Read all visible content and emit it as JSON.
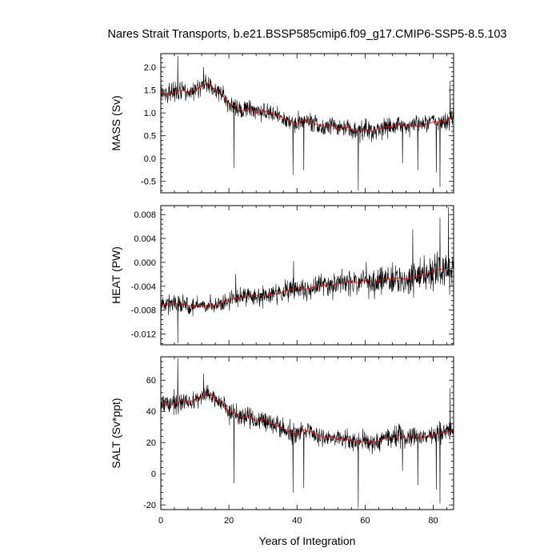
{
  "figure": {
    "title": "Nares Strait Transports, b.e21.BSSP585cmip6.f09_g17.CMIP6-SSP5-8.5.103",
    "xlabel": "Years of Integration"
  },
  "chart_data": [
    {
      "type": "line",
      "ylabel": "MASS (Sv)",
      "xlim": [
        0,
        86
      ],
      "ylim": [
        -0.75,
        2.3
      ],
      "x_ticks": [
        0,
        20,
        40,
        60,
        80
      ],
      "y_ticks": [
        -0.5,
        0.0,
        0.5,
        1.0,
        1.5,
        2.0
      ],
      "y_tick_labels": [
        "-0.5",
        "0.0",
        "0.5",
        "1.0",
        "1.5",
        "2.0"
      ],
      "x_years": [
        0,
        2,
        4,
        6,
        8,
        10,
        12,
        14,
        16,
        18,
        20,
        22,
        24,
        26,
        28,
        30,
        32,
        34,
        36,
        38,
        40,
        42,
        44,
        46,
        48,
        50,
        52,
        54,
        56,
        58,
        60,
        62,
        64,
        66,
        68,
        70,
        72,
        74,
        76,
        78,
        80,
        82,
        84,
        86
      ],
      "series": [
        {
          "color": "#000000",
          "line_width": 0.6,
          "step_years": 0.083333,
          "values": [
            1.45,
            1.4,
            1.45,
            1.5,
            1.45,
            1.5,
            1.6,
            1.65,
            1.5,
            1.4,
            1.2,
            1.15,
            1.05,
            1.1,
            1.0,
            1.05,
            1.0,
            0.95,
            0.9,
            0.8,
            0.75,
            0.85,
            0.8,
            0.75,
            0.7,
            0.75,
            0.65,
            0.7,
            0.65,
            0.6,
            0.65,
            0.6,
            0.65,
            0.7,
            0.7,
            0.75,
            0.7,
            0.75,
            0.7,
            0.75,
            0.8,
            0.8,
            0.85,
            0.9
          ],
          "noise": 0.25,
          "spikes": [
            [
              5.0,
              2.25
            ],
            [
              12.6,
              2.0
            ],
            [
              21.5,
              -0.2
            ],
            [
              38.8,
              -0.35
            ],
            [
              42.0,
              -0.25
            ],
            [
              58.0,
              -0.7
            ],
            [
              71.0,
              -0.1
            ],
            [
              75.5,
              -0.25
            ],
            [
              80.9,
              -0.3
            ],
            [
              82.0,
              -0.62
            ],
            [
              85.0,
              1.7
            ]
          ]
        },
        {
          "color": "#ff0000",
          "line_width": 0.9,
          "step_years": 1,
          "values": [
            1.45,
            1.4,
            1.45,
            1.5,
            1.45,
            1.5,
            1.6,
            1.65,
            1.5,
            1.4,
            1.2,
            1.15,
            1.05,
            1.1,
            1.0,
            1.05,
            1.0,
            0.95,
            0.9,
            0.8,
            0.75,
            0.85,
            0.8,
            0.75,
            0.7,
            0.75,
            0.65,
            0.7,
            0.65,
            0.6,
            0.65,
            0.6,
            0.65,
            0.7,
            0.7,
            0.75,
            0.7,
            0.75,
            0.7,
            0.75,
            0.8,
            0.8,
            0.85,
            0.9
          ]
        }
      ]
    },
    {
      "type": "line",
      "ylabel": "HEAT (PW)",
      "xlim": [
        0,
        86
      ],
      "ylim": [
        -0.0138,
        0.0095
      ],
      "x_ticks": [
        0,
        20,
        40,
        60,
        80
      ],
      "y_ticks": [
        -0.012,
        -0.008,
        -0.004,
        0.0,
        0.004,
        0.008
      ],
      "y_tick_labels": [
        "-0.012",
        "-0.008",
        "-0.004",
        "0.000",
        "0.004",
        "0.008"
      ],
      "x_years": [
        0,
        2,
        4,
        6,
        8,
        10,
        12,
        14,
        16,
        18,
        20,
        22,
        24,
        26,
        28,
        30,
        32,
        34,
        36,
        38,
        40,
        42,
        44,
        46,
        48,
        50,
        52,
        54,
        56,
        58,
        60,
        62,
        64,
        66,
        68,
        70,
        72,
        74,
        76,
        78,
        80,
        82,
        84,
        86
      ],
      "series": [
        {
          "color": "#000000",
          "line_width": 0.6,
          "step_years": 0.083333,
          "values": [
            -0.007,
            -0.007,
            -0.0068,
            -0.007,
            -0.0072,
            -0.0073,
            -0.0072,
            -0.0074,
            -0.0072,
            -0.0068,
            -0.0062,
            -0.006,
            -0.0058,
            -0.0055,
            -0.0055,
            -0.0056,
            -0.0054,
            -0.0053,
            -0.005,
            -0.0045,
            -0.0042,
            -0.0045,
            -0.0043,
            -0.004,
            -0.0038,
            -0.004,
            -0.0035,
            -0.0034,
            -0.0032,
            -0.0034,
            -0.003,
            -0.0032,
            -0.003,
            -0.0028,
            -0.0028,
            -0.0026,
            -0.0028,
            -0.0024,
            -0.0022,
            -0.002,
            -0.0014,
            -0.0012,
            -0.001,
            -0.001
          ],
          "noise": 0.0018,
          "noise_growth": 2.2,
          "spikes": [
            [
              5.0,
              -0.0135
            ],
            [
              22.0,
              -0.002
            ],
            [
              39.0,
              0.0002
            ],
            [
              74.0,
              0.0055
            ],
            [
              82.0,
              0.0074
            ],
            [
              84.5,
              0.0092
            ]
          ]
        },
        {
          "color": "#ff0000",
          "line_width": 0.9,
          "step_years": 1,
          "values": [
            -0.007,
            -0.007,
            -0.0068,
            -0.007,
            -0.0072,
            -0.0073,
            -0.0072,
            -0.0074,
            -0.0072,
            -0.0068,
            -0.0062,
            -0.006,
            -0.0058,
            -0.0055,
            -0.0055,
            -0.0056,
            -0.0054,
            -0.0053,
            -0.005,
            -0.0045,
            -0.0042,
            -0.0045,
            -0.0043,
            -0.004,
            -0.0038,
            -0.004,
            -0.0035,
            -0.0034,
            -0.0032,
            -0.0034,
            -0.003,
            -0.0032,
            -0.003,
            -0.0028,
            -0.0028,
            -0.0026,
            -0.0028,
            -0.0024,
            -0.0022,
            -0.002,
            -0.0014,
            -0.0012,
            -0.001,
            -0.001
          ]
        }
      ]
    },
    {
      "type": "line",
      "ylabel": "SALT (Sv*ppt)",
      "xlim": [
        0,
        86
      ],
      "ylim": [
        -23,
        75
      ],
      "x_ticks": [
        0,
        20,
        40,
        60,
        80
      ],
      "y_ticks": [
        -20,
        0,
        20,
        40,
        60
      ],
      "y_tick_labels": [
        "-20",
        "0",
        "20",
        "40",
        "60"
      ],
      "x_tick_labels": [
        "0",
        "20",
        "40",
        "60",
        "80"
      ],
      "x_years": [
        0,
        2,
        4,
        6,
        8,
        10,
        12,
        14,
        16,
        18,
        20,
        22,
        24,
        26,
        28,
        30,
        32,
        34,
        36,
        38,
        40,
        42,
        44,
        46,
        48,
        50,
        52,
        54,
        56,
        58,
        60,
        62,
        64,
        66,
        68,
        70,
        72,
        74,
        76,
        78,
        80,
        82,
        84,
        86
      ],
      "series": [
        {
          "color": "#000000",
          "line_width": 0.6,
          "step_years": 0.083333,
          "values": [
            46,
            44,
            45,
            47,
            46,
            47,
            50,
            52,
            48,
            45,
            40,
            39,
            36,
            37,
            34,
            35,
            33,
            31,
            29,
            27,
            25,
            28,
            27,
            25,
            23,
            24,
            22,
            23,
            21,
            20,
            21,
            20,
            21,
            23,
            23,
            25,
            23,
            25,
            23,
            24,
            25,
            26,
            27,
            28
          ],
          "noise": 8,
          "spikes": [
            [
              5.0,
              74
            ],
            [
              12.6,
              64
            ],
            [
              21.5,
              -6
            ],
            [
              38.8,
              -12
            ],
            [
              42.0,
              -9
            ],
            [
              58.0,
              -22
            ],
            [
              71.0,
              2
            ],
            [
              75.5,
              -7
            ],
            [
              80.9,
              -10
            ],
            [
              82.0,
              -19
            ],
            [
              85.0,
              55
            ]
          ]
        },
        {
          "color": "#ff0000",
          "line_width": 0.9,
          "step_years": 1,
          "values": [
            46,
            44,
            45,
            47,
            46,
            47,
            50,
            52,
            48,
            45,
            40,
            39,
            36,
            37,
            34,
            35,
            33,
            31,
            29,
            27,
            25,
            28,
            27,
            25,
            23,
            24,
            22,
            23,
            21,
            20,
            21,
            20,
            21,
            23,
            23,
            25,
            23,
            25,
            23,
            24,
            25,
            26,
            27,
            28
          ]
        }
      ]
    }
  ]
}
